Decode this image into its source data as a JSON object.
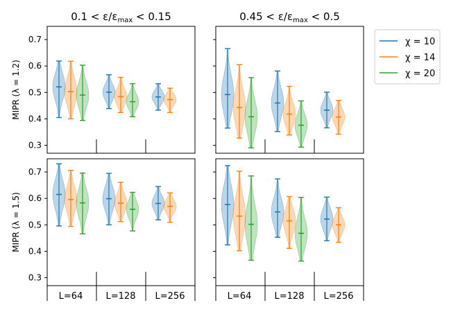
{
  "chart_data": {
    "type": "violin",
    "colors": {
      "chi10": "#1f77b4",
      "chi14": "#ff7f0e",
      "chi20": "#2ca02c"
    },
    "legend": {
      "placement": "outside-right",
      "entries": [
        {
          "key": "chi10",
          "label": "χ = 10"
        },
        {
          "key": "chi14",
          "label": "χ = 14"
        },
        {
          "key": "chi20",
          "label": "χ = 20"
        }
      ]
    },
    "column_titles": [
      "0.1 < ε/ε_max < 0.15",
      "0.45 < ε/ε_max < 0.5"
    ],
    "row_ylabels": [
      "MIPR (λ = 1.2)",
      "MIPR (λ = 1.5)"
    ],
    "group_labels": [
      "L=64",
      "L=128",
      "L=256"
    ],
    "yticks": [
      "0.3",
      "0.4",
      "0.5",
      "0.6",
      "0.7"
    ],
    "ylim": [
      0.27,
      0.75
    ],
    "panels": [
      {
        "row": 0,
        "col": 0,
        "groups": [
          {
            "label": "L=64",
            "violins": [
              {
                "series": "chi10",
                "min": 0.405,
                "median": 0.521,
                "max": 0.619
              },
              {
                "series": "chi14",
                "min": 0.4,
                "median": 0.503,
                "max": 0.618
              },
              {
                "series": "chi20",
                "min": 0.394,
                "median": 0.49,
                "max": 0.603
              }
            ]
          },
          {
            "label": "L=128",
            "violins": [
              {
                "series": "chi10",
                "min": 0.439,
                "median": 0.501,
                "max": 0.567
              },
              {
                "series": "chi14",
                "min": 0.424,
                "median": 0.484,
                "max": 0.557
              },
              {
                "series": "chi20",
                "min": 0.408,
                "median": 0.465,
                "max": 0.533
              }
            ]
          },
          {
            "label": "L=256",
            "violins": [
              {
                "series": "chi10",
                "min": 0.433,
                "median": 0.483,
                "max": 0.533
              },
              {
                "series": "chi14",
                "min": 0.424,
                "median": 0.473,
                "max": 0.516
              }
            ]
          }
        ]
      },
      {
        "row": 0,
        "col": 1,
        "groups": [
          {
            "label": "L=64",
            "violins": [
              {
                "series": "chi10",
                "min": 0.365,
                "median": 0.492,
                "max": 0.666
              },
              {
                "series": "chi14",
                "min": 0.327,
                "median": 0.443,
                "max": 0.605
              },
              {
                "series": "chi20",
                "min": 0.29,
                "median": 0.408,
                "max": 0.556
              }
            ]
          },
          {
            "label": "L=128",
            "violins": [
              {
                "series": "chi10",
                "min": 0.352,
                "median": 0.46,
                "max": 0.581
              },
              {
                "series": "chi14",
                "min": 0.339,
                "median": 0.418,
                "max": 0.523
              },
              {
                "series": "chi20",
                "min": 0.293,
                "median": 0.376,
                "max": 0.468
              }
            ]
          },
          {
            "label": "L=256",
            "violins": [
              {
                "series": "chi10",
                "min": 0.366,
                "median": 0.433,
                "max": 0.501
              },
              {
                "series": "chi14",
                "min": 0.342,
                "median": 0.407,
                "max": 0.47
              }
            ]
          }
        ]
      },
      {
        "row": 1,
        "col": 0,
        "groups": [
          {
            "label": "L=64",
            "violins": [
              {
                "series": "chi10",
                "min": 0.496,
                "median": 0.615,
                "max": 0.731
              },
              {
                "series": "chi14",
                "min": 0.494,
                "median": 0.596,
                "max": 0.706
              },
              {
                "series": "chi20",
                "min": 0.466,
                "median": 0.583,
                "max": 0.696
              }
            ]
          },
          {
            "label": "L=128",
            "violins": [
              {
                "series": "chi10",
                "min": 0.5,
                "median": 0.599,
                "max": 0.695
              },
              {
                "series": "chi14",
                "min": 0.512,
                "median": 0.582,
                "max": 0.661
              },
              {
                "series": "chi20",
                "min": 0.477,
                "median": 0.559,
                "max": 0.623
              }
            ]
          },
          {
            "label": "L=256",
            "violins": [
              {
                "series": "chi10",
                "min": 0.519,
                "median": 0.581,
                "max": 0.645
              },
              {
                "series": "chi14",
                "min": 0.51,
                "median": 0.57,
                "max": 0.621
              }
            ]
          }
        ]
      },
      {
        "row": 1,
        "col": 1,
        "groups": [
          {
            "label": "L=64",
            "violins": [
              {
                "series": "chi10",
                "min": 0.424,
                "median": 0.577,
                "max": 0.724
              },
              {
                "series": "chi14",
                "min": 0.402,
                "median": 0.533,
                "max": 0.703
              },
              {
                "series": "chi20",
                "min": 0.366,
                "median": 0.502,
                "max": 0.685
              }
            ]
          },
          {
            "label": "L=128",
            "violins": [
              {
                "series": "chi10",
                "min": 0.453,
                "median": 0.549,
                "max": 0.674
              },
              {
                "series": "chi14",
                "min": 0.411,
                "median": 0.515,
                "max": 0.607
              },
              {
                "series": "chi20",
                "min": 0.363,
                "median": 0.468,
                "max": 0.604
              }
            ]
          },
          {
            "label": "L=256",
            "violins": [
              {
                "series": "chi10",
                "min": 0.44,
                "median": 0.522,
                "max": 0.605
              },
              {
                "series": "chi14",
                "min": 0.434,
                "median": 0.5,
                "max": 0.565
              }
            ]
          }
        ]
      }
    ]
  }
}
